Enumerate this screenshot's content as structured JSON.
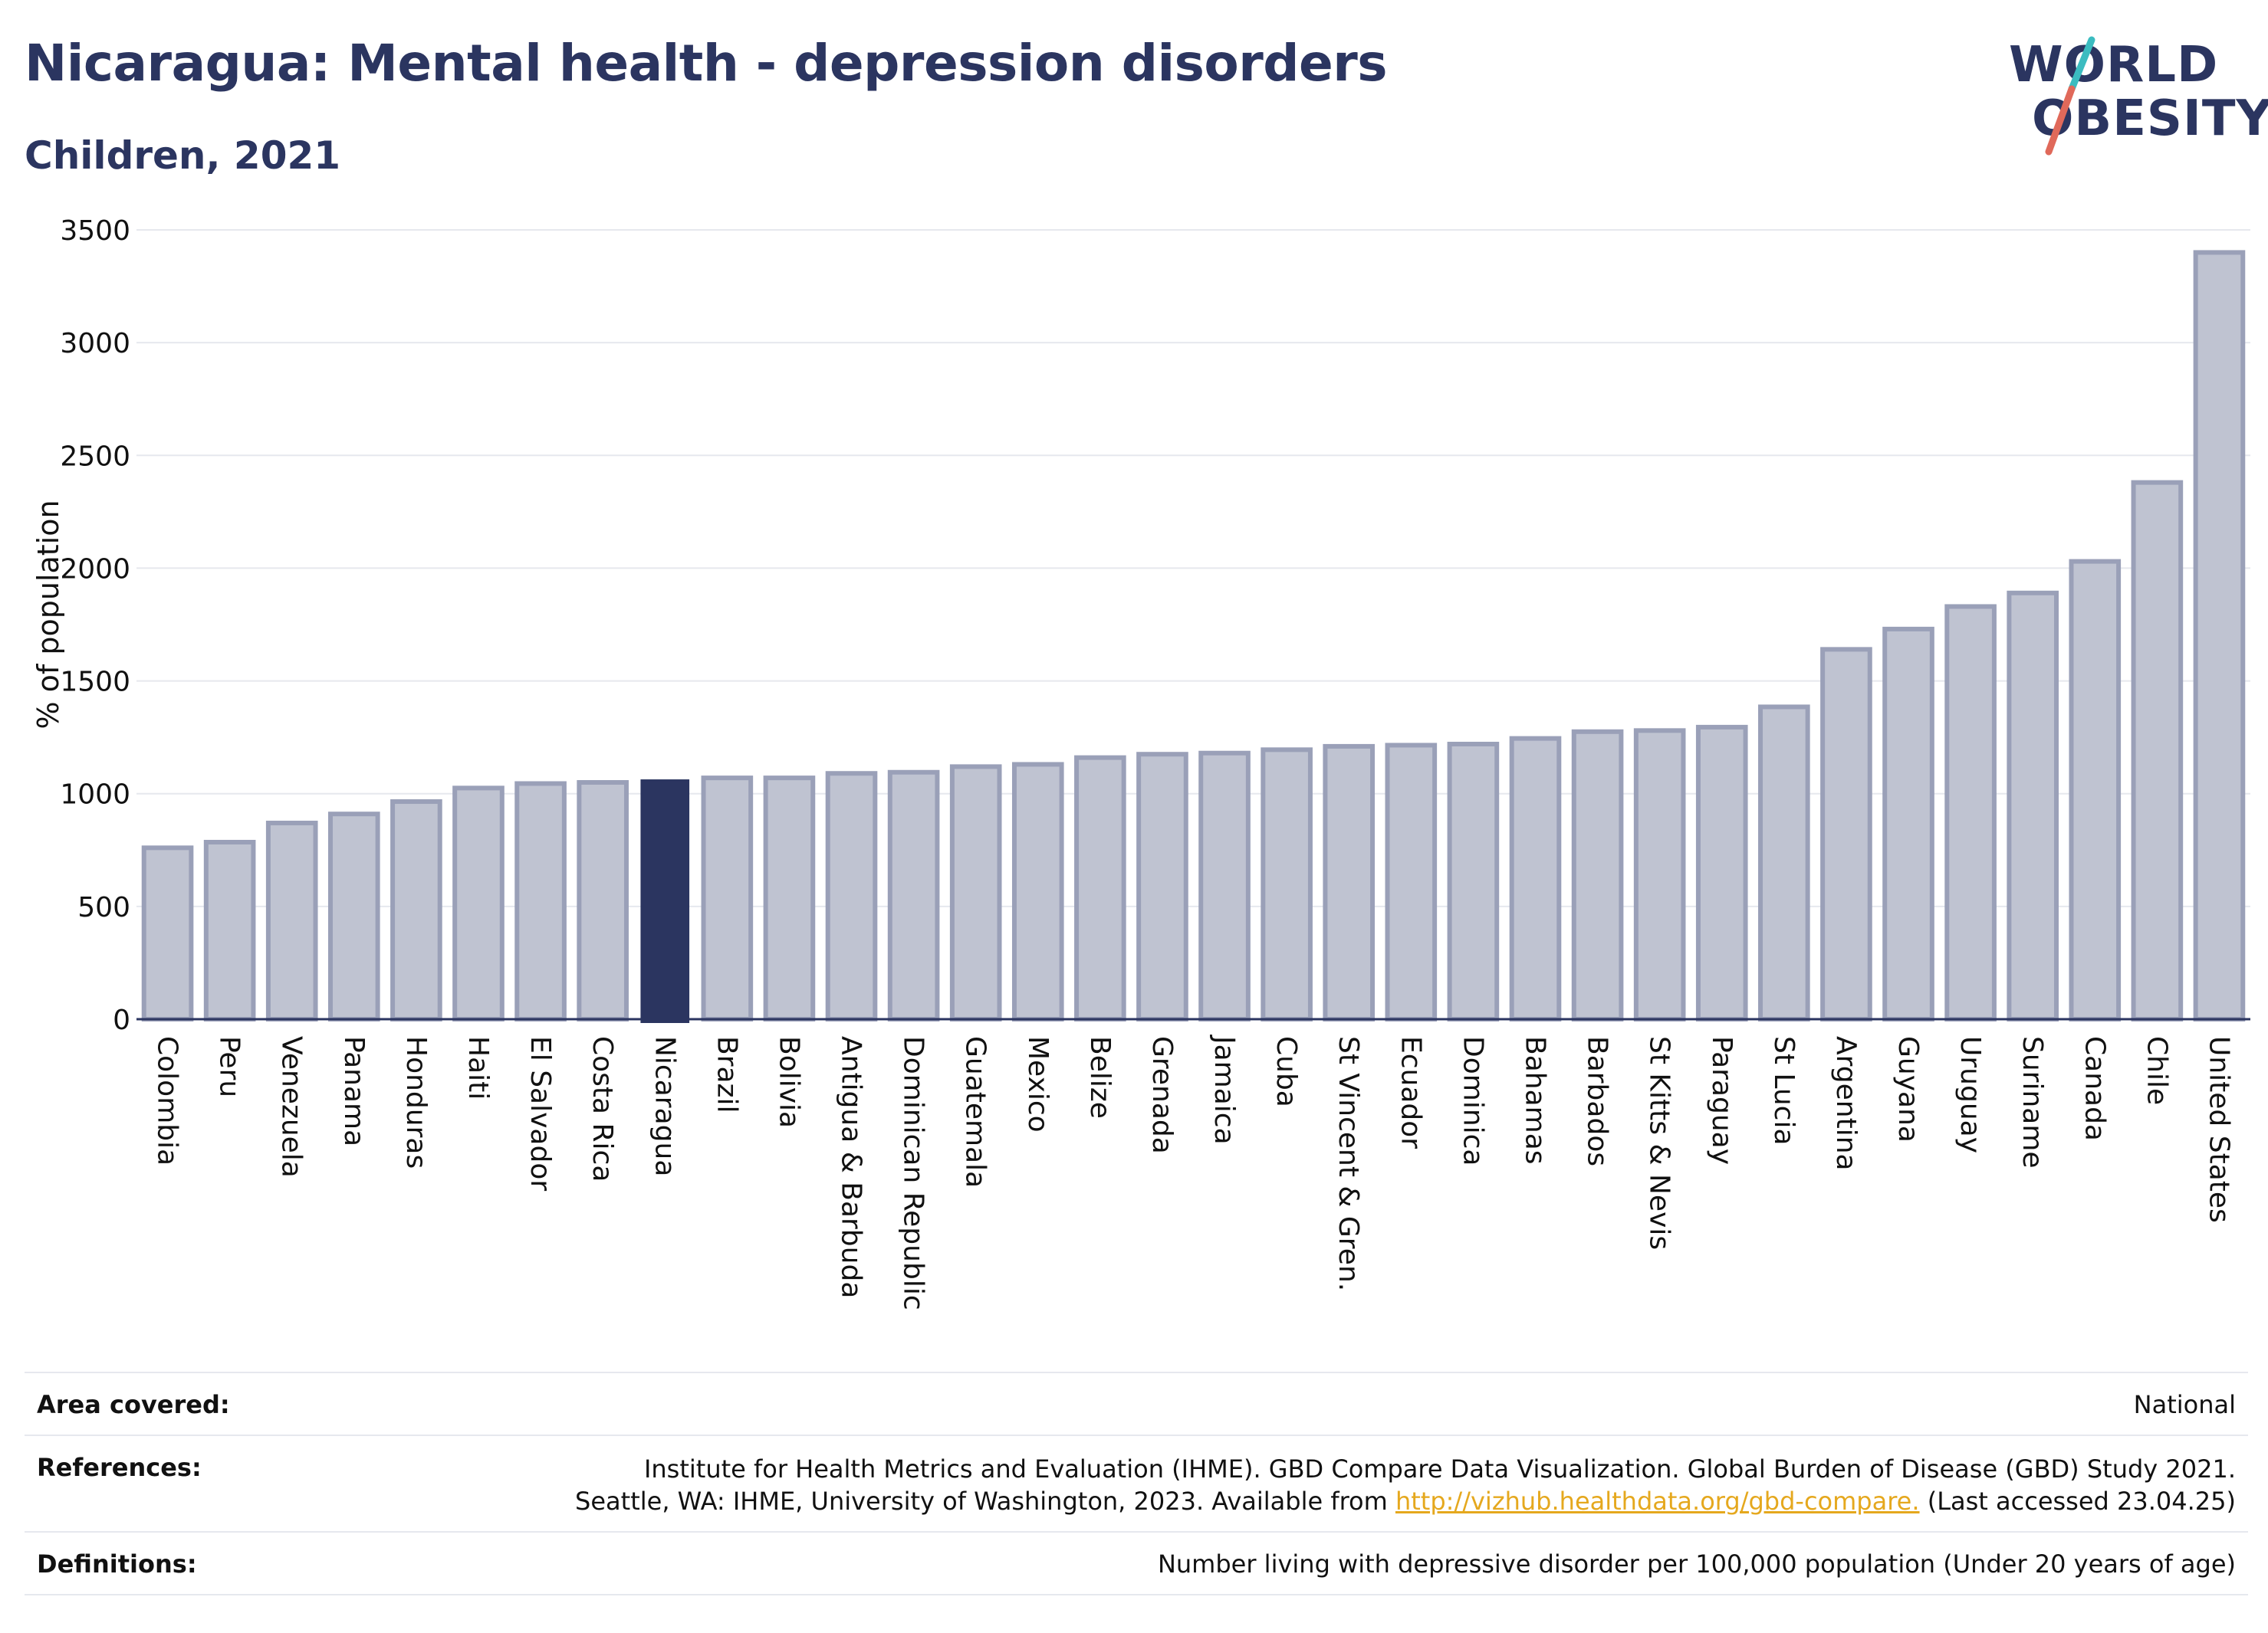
{
  "header": {
    "title": "Nicaragua: Mental health - depression disorders",
    "subtitle": "Children, 2021"
  },
  "logo": {
    "line1": "WORLD",
    "line2": "OBESITY",
    "accent_teal": "#3bbcc0",
    "accent_red": "#e0695a"
  },
  "chart_data": {
    "type": "bar",
    "ylabel": "% of population",
    "ylim": [
      0,
      3500
    ],
    "yticks": [
      0,
      500,
      1000,
      1500,
      2000,
      2500,
      3000,
      3500
    ],
    "grid": true,
    "highlight": "Nicaragua",
    "highlight_color": "#2b3560",
    "bar_color": "#bfc3d1",
    "bar_edge_color": "#9aa0b8",
    "categories": [
      "Colombia",
      "Peru",
      "Venezuela",
      "Panama",
      "Honduras",
      "Haiti",
      "El Salvador",
      "Costa Rica",
      "Nicaragua",
      "Brazil",
      "Bolivia",
      "Antigua & Barbuda",
      "Dominican Republic",
      "Guatemala",
      "Mexico",
      "Belize",
      "Grenada",
      "Jamaica",
      "Cuba",
      "St Vincent & Gren.",
      "Ecuador",
      "Dominica",
      "Bahamas",
      "Barbados",
      "St Kitts & Nevis",
      "Paraguay",
      "St Lucia",
      "Argentina",
      "Guyana",
      "Uruguay",
      "Suriname",
      "Canada",
      "Chile",
      "United States"
    ],
    "values": [
      760,
      785,
      870,
      910,
      965,
      1025,
      1045,
      1050,
      1060,
      1070,
      1070,
      1090,
      1095,
      1120,
      1130,
      1160,
      1175,
      1180,
      1195,
      1210,
      1215,
      1220,
      1245,
      1275,
      1280,
      1295,
      1385,
      1640,
      1730,
      1830,
      1890,
      2030,
      2380,
      3400
    ]
  },
  "footer": {
    "area_label": "Area covered:",
    "area_value": "National",
    "ref_label": "References:",
    "ref_line1": "Institute for Health Metrics and Evaluation (IHME). GBD Compare Data Visualization. Global Burden of Disease (GBD) Study 2021.",
    "ref_line2_pre": "Seattle, WA: IHME, University of Washington, 2023. Available from ",
    "ref_link": "http://vizhub.healthdata.org/gbd-compare.",
    "ref_line2_post": " (Last accessed 23.04.25)",
    "def_label": "Definitions:",
    "def_value": "Number living with depressive disorder per 100,000 population (Under 20 years of age)"
  }
}
